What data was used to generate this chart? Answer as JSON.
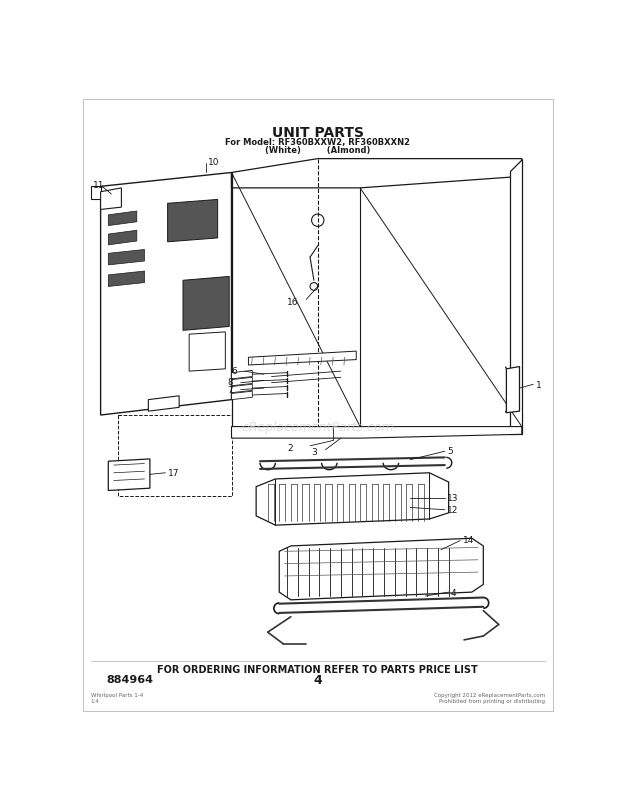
{
  "title": "UNIT PARTS",
  "subtitle_line1": "For Model: RF360BXXW2, RF360BXXN2",
  "subtitle_line2": "(White)         (Almond)",
  "footer_text": "FOR ORDERING INFORMATION REFER TO PARTS PRICE LIST",
  "part_number": "884964",
  "page_number": "4",
  "bg_color": "#ffffff",
  "line_color": "#1a1a1a",
  "watermark": "eReplacementParts.com",
  "bottom_left_text": "Whirlpool Parts 1-4\n1.4",
  "bottom_right_text": "Copyright 2012 eReplacementParts.com\nProhibited from printing or distributing"
}
